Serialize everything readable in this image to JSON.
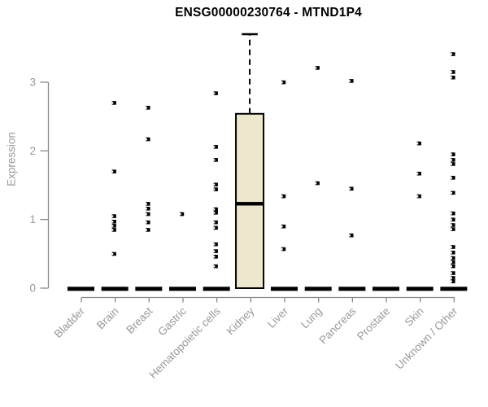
{
  "colors": {
    "background": "#ffffff",
    "box_fill": "#ECE7CD",
    "box_stroke": "#000000",
    "median": "#000000",
    "axis": "#8a8a8a",
    "tick_label": "#999999",
    "title": "#000000",
    "outlier": "#000000"
  },
  "chart_data": {
    "type": "boxplot",
    "title": "ENSG00000230764 - MTND1P4",
    "ylabel": "Expression",
    "xlabel": "",
    "ylim": [
      0,
      3.8
    ],
    "yticks": [
      0,
      1,
      2,
      3
    ],
    "grid": false,
    "legend": false,
    "categories": [
      "Bladder",
      "Brain",
      "Breast",
      "Gastric",
      "Hematopoietic cells",
      "Kidney",
      "Liver",
      "Lung",
      "Pancreas",
      "Prostate",
      "Skin",
      "Unknown / Other"
    ],
    "series": [
      {
        "category": "Bladder",
        "median": 0,
        "q1": 0,
        "q3": 0,
        "whisker_low": 0,
        "whisker_high": 0,
        "outliers": []
      },
      {
        "category": "Brain",
        "median": 0,
        "q1": 0,
        "q3": 0,
        "whisker_low": 0,
        "whisker_high": 0,
        "outliers": [
          2.7,
          1.7,
          1.05,
          0.97,
          0.91,
          0.85,
          0.5
        ]
      },
      {
        "category": "Breast",
        "median": 0,
        "q1": 0,
        "q3": 0,
        "whisker_low": 0,
        "whisker_high": 0,
        "outliers": [
          2.63,
          2.17,
          1.23,
          1.16,
          1.08,
          0.96,
          0.85
        ]
      },
      {
        "category": "Gastric",
        "median": 0,
        "q1": 0,
        "q3": 0,
        "whisker_low": 0,
        "whisker_high": 0,
        "outliers": [
          1.08
        ]
      },
      {
        "category": "Hematopoietic cells",
        "median": 0,
        "q1": 0,
        "q3": 0,
        "whisker_low": 0,
        "whisker_high": 0,
        "outliers": [
          2.84,
          2.06,
          1.87,
          1.51,
          1.44,
          1.15,
          1.1,
          0.96,
          0.88,
          0.64,
          0.54,
          0.46,
          0.32
        ]
      },
      {
        "category": "Kidney",
        "median": 1.23,
        "q1": 0,
        "q3": 2.54,
        "whisker_low": 0,
        "whisker_high": 3.7,
        "outliers": []
      },
      {
        "category": "Liver",
        "median": 0,
        "q1": 0,
        "q3": 0,
        "whisker_low": 0,
        "whisker_high": 0,
        "outliers": [
          3.0,
          1.34,
          0.9,
          0.57
        ]
      },
      {
        "category": "Lung",
        "median": 0,
        "q1": 0,
        "q3": 0,
        "whisker_low": 0,
        "whisker_high": 0,
        "outliers": [
          3.21,
          1.53
        ]
      },
      {
        "category": "Pancreas",
        "median": 0,
        "q1": 0,
        "q3": 0,
        "whisker_low": 0,
        "whisker_high": 0,
        "outliers": [
          3.02,
          1.45,
          0.77
        ]
      },
      {
        "category": "Prostate",
        "median": 0,
        "q1": 0,
        "q3": 0,
        "whisker_low": 0,
        "whisker_high": 0,
        "outliers": []
      },
      {
        "category": "Skin",
        "median": 0,
        "q1": 0,
        "q3": 0,
        "whisker_low": 0,
        "whisker_high": 0,
        "outliers": [
          2.11,
          1.67,
          1.34
        ]
      },
      {
        "category": "Unknown / Other",
        "median": 0,
        "q1": 0,
        "q3": 0,
        "whisker_low": 0,
        "whisker_high": 0,
        "outliers": [
          3.41,
          3.15,
          3.07,
          1.95,
          1.87,
          1.81,
          1.61,
          1.39,
          1.09,
          1.0,
          0.92,
          0.86,
          0.6,
          0.52,
          0.44,
          0.38,
          0.32,
          0.22,
          0.15,
          0.1
        ]
      }
    ]
  }
}
